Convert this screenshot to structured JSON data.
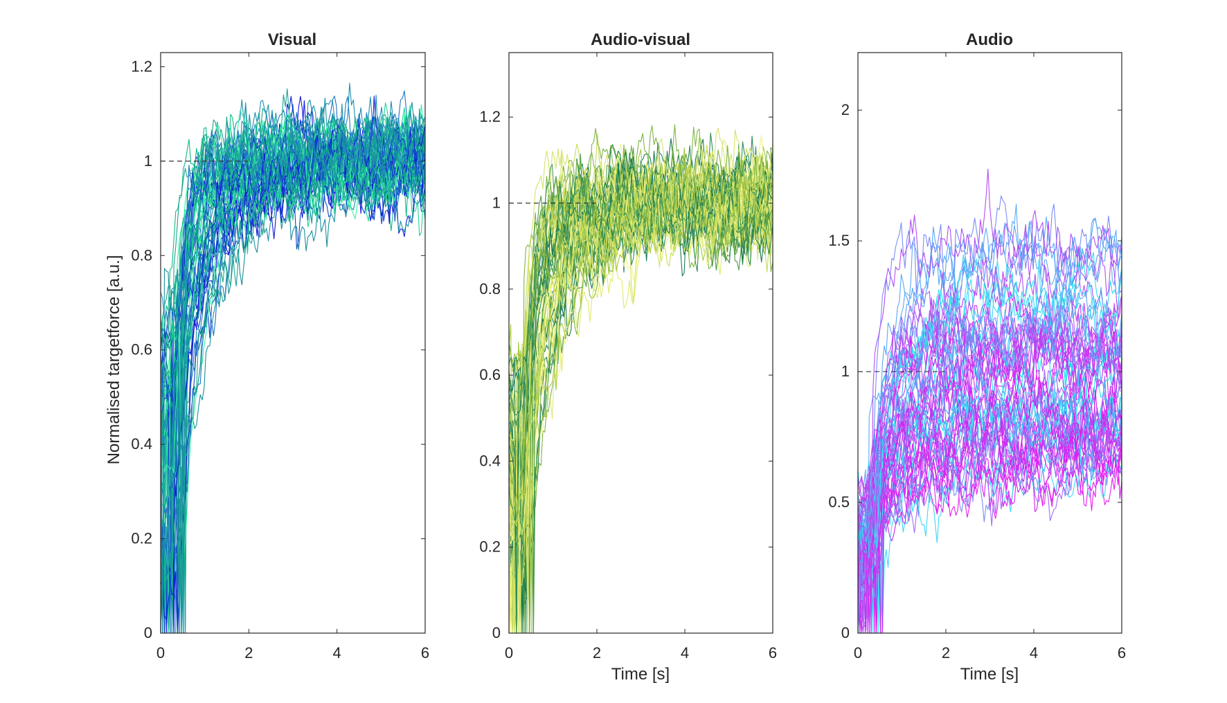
{
  "chart_data": [
    {
      "type": "line",
      "title": "Visual",
      "xlabel": "",
      "ylabel": "Normalised targetforce [a.u.]",
      "xlim": [
        0,
        6
      ],
      "ylim": [
        0,
        1.23
      ],
      "xticks": [
        0,
        2,
        4,
        6
      ],
      "xtick_labels": [
        "0",
        "2",
        "4",
        "6"
      ],
      "yticks": [
        0,
        0.2,
        0.4,
        0.6,
        0.8,
        1,
        1.2
      ],
      "ytick_labels": [
        "0",
        "0.2",
        "0.4",
        "0.6",
        "0.8",
        "1",
        "1.2"
      ],
      "reference_line_y": 1,
      "n_series": 60,
      "rise_time_range_s": [
        0.3,
        2.2
      ],
      "start_value_range": [
        0.1,
        0.72
      ],
      "plateau_value": 1.0,
      "noise_level": 0.04,
      "colors": [
        "#1019d9",
        "#1144cc",
        "#1b73c4",
        "#1d8fb0",
        "#168f9d",
        "#1aa38e",
        "#10b987",
        "#20d49a",
        "#3af2a8"
      ]
    },
    {
      "type": "line",
      "title": "Audio-visual",
      "xlabel": "Time [s]",
      "ylabel": "",
      "xlim": [
        0,
        6
      ],
      "ylim": [
        0,
        1.35
      ],
      "xticks": [
        0,
        2,
        4,
        6
      ],
      "xtick_labels": [
        "0",
        "2",
        "4",
        "6"
      ],
      "yticks": [
        0,
        0.2,
        0.4,
        0.6,
        0.8,
        1,
        1.2
      ],
      "ytick_labels": [
        "0",
        "0.2",
        "0.4",
        "0.6",
        "0.8",
        "1",
        "1.2"
      ],
      "reference_line_y": 1,
      "n_series": 60,
      "rise_time_range_s": [
        0.3,
        2.5
      ],
      "start_value_range": [
        0.1,
        0.65
      ],
      "plateau_value": 1.0,
      "noise_level": 0.05,
      "colors": [
        "#1a7a52",
        "#2e8b57",
        "#4f9d4a",
        "#7fb546",
        "#a6c744",
        "#c8dc5a",
        "#e0ea6c",
        "#f1f58a",
        "#d7e36a"
      ]
    },
    {
      "type": "line",
      "title": "Audio",
      "xlabel": "Time [s]",
      "ylabel": "",
      "xlim": [
        0,
        6
      ],
      "ylim": [
        0,
        2.22
      ],
      "xticks": [
        0,
        2,
        4,
        6
      ],
      "xtick_labels": [
        "0",
        "2",
        "4",
        "6"
      ],
      "yticks": [
        0,
        0.5,
        1,
        1.5,
        2
      ],
      "ytick_labels": [
        "0",
        "0.5",
        "1",
        "1.5",
        "2"
      ],
      "reference_line_y": 1,
      "n_series": 60,
      "rise_time_range_s": [
        0.4,
        2.5
      ],
      "start_value_range": [
        0.1,
        0.55
      ],
      "plateau_value_range": [
        0.6,
        1.5
      ],
      "noise_level": 0.07,
      "colors": [
        "#e81df0",
        "#d41fee",
        "#c33bf0",
        "#b24ff2",
        "#a36af4",
        "#7b8cf6",
        "#5aa8f7",
        "#3fd6f5",
        "#22e6f2"
      ]
    }
  ]
}
